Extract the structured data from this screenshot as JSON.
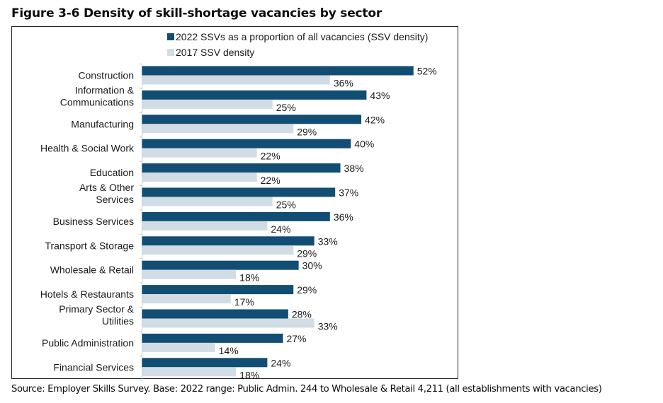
{
  "figure": {
    "title": "Figure 3-6 Density of skill-shortage vacancies by sector",
    "source": "Source: Employer Skills Survey. Base: 2022 range: Public Admin. 244 to Wholesale & Retail 4,211 (all establishments with vacancies)"
  },
  "chart_data": {
    "type": "bar",
    "orientation": "horizontal",
    "title": "Density of skill-shortage vacancies by sector",
    "xlabel": "",
    "ylabel": "",
    "xlim": [
      0,
      100
    ],
    "unit": "%",
    "grid": false,
    "legend_position": "top-right",
    "categories": [
      [
        "Construction"
      ],
      [
        "Information &",
        "Communications"
      ],
      [
        "Manufacturing"
      ],
      [
        "Health & Social Work"
      ],
      [
        "Education"
      ],
      [
        "Arts & Other",
        "Services"
      ],
      [
        "Business Services"
      ],
      [
        "Transport & Storage"
      ],
      [
        "Wholesale & Retail"
      ],
      [
        "Hotels & Restaurants"
      ],
      [
        "Primary Sector &",
        "Utilities"
      ],
      [
        "Public Administration"
      ],
      [
        "Financial Services"
      ]
    ],
    "series": [
      {
        "name": "2022 SSVs as a proportion of all vacancies (SSV density)",
        "color": "#124e73",
        "values": [
          52,
          43,
          42,
          40,
          38,
          37,
          36,
          33,
          30,
          29,
          28,
          27,
          24
        ]
      },
      {
        "name": "2017 SSV density",
        "color": "#d1dce4",
        "values": [
          36,
          25,
          29,
          22,
          22,
          25,
          24,
          29,
          18,
          17,
          33,
          14,
          18
        ]
      }
    ]
  }
}
